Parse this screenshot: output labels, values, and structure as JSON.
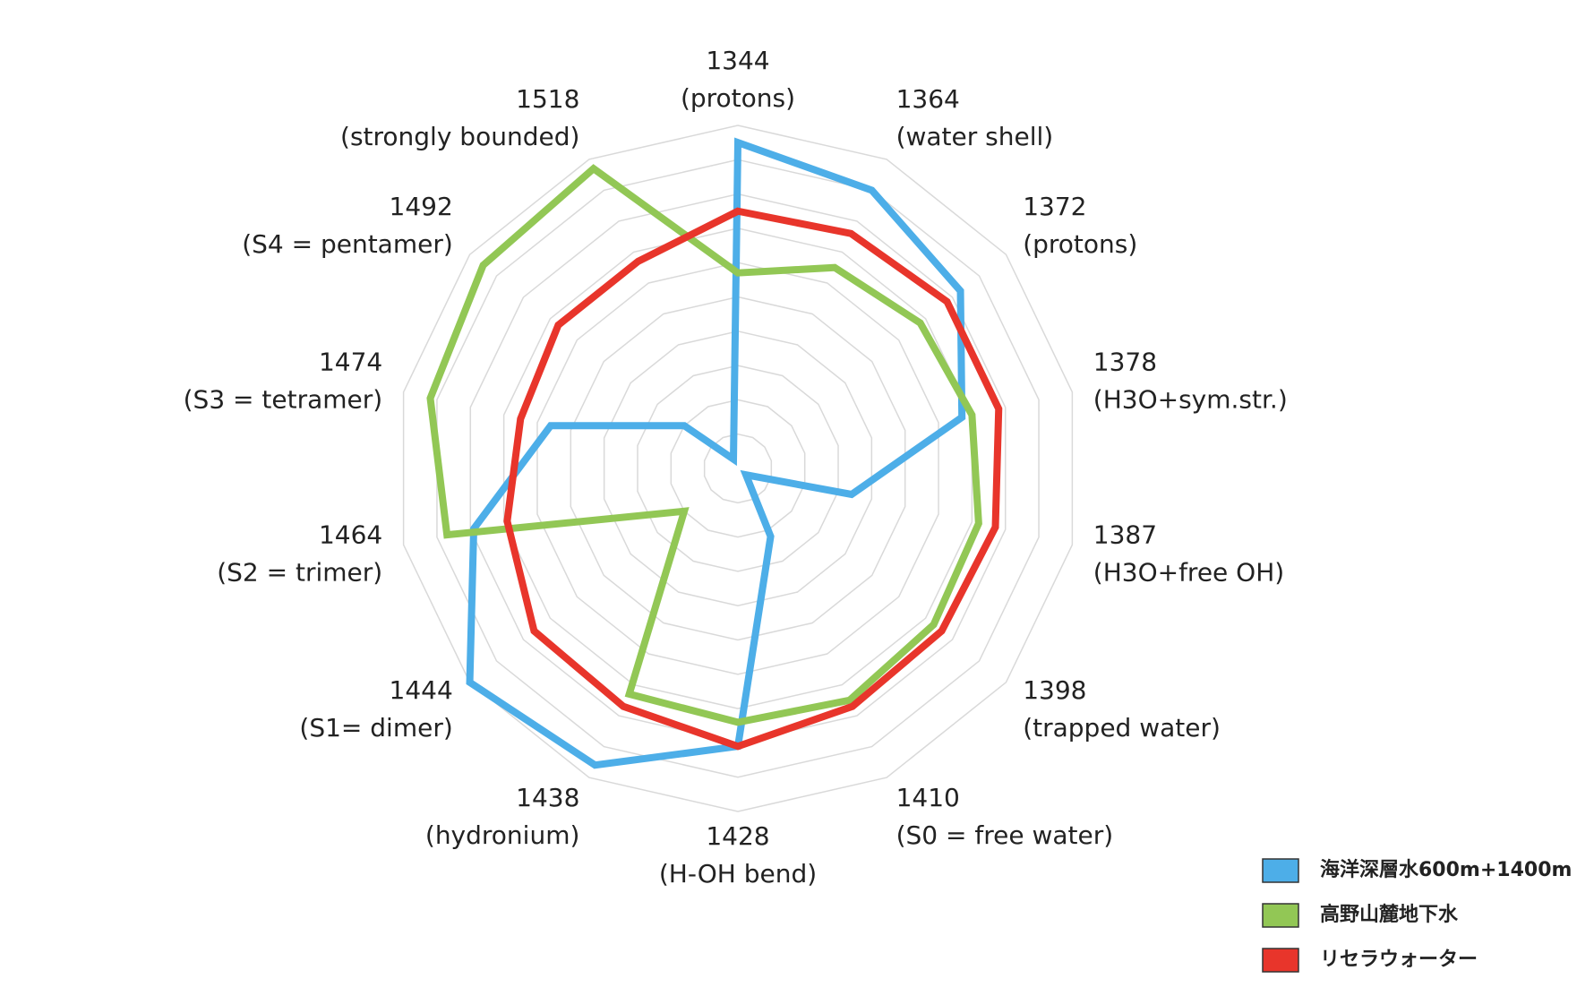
{
  "chart_data": {
    "type": "radar",
    "categories": [
      [
        "1344",
        "(protons)"
      ],
      [
        "1364",
        "(water shell)"
      ],
      [
        "1372",
        "(protons)"
      ],
      [
        "1378",
        "(H3O+sym.str.)"
      ],
      [
        "1387",
        "(H3O+free OH)"
      ],
      [
        "1398",
        "(trapped water)"
      ],
      [
        "1410",
        "(S0 = free water)"
      ],
      [
        "1428",
        "(H-OH bend)"
      ],
      [
        "1438",
        "(hydronium)"
      ],
      [
        "1444",
        "(S1= dimer)"
      ],
      [
        "1464",
        "(S2 = trimer)"
      ],
      [
        "1474",
        "(S3 = tetramer)"
      ],
      [
        "1492",
        "(S4 = pentamer)"
      ],
      [
        "1518",
        "(strongly bounded)"
      ]
    ],
    "series": [
      {
        "name": "海洋深層水600m+1400m",
        "color": "#4daee8",
        "values": [
          9.5,
          9.0,
          8.3,
          6.7,
          3.4,
          0.3,
          2.2,
          8.1,
          9.6,
          10.0,
          7.9,
          5.6,
          2.0,
          0.3
        ]
      },
      {
        "name": "高野山麓地下水",
        "color": "#92c755",
        "values": [
          5.7,
          6.5,
          6.8,
          7.0,
          7.2,
          7.3,
          7.5,
          7.4,
          7.3,
          2.0,
          8.7,
          9.2,
          9.5,
          9.7
        ]
      },
      {
        "name": "リセラウォーター",
        "color": "#e8352b",
        "values": [
          7.5,
          7.6,
          7.8,
          7.8,
          7.7,
          7.6,
          7.7,
          8.1,
          7.7,
          7.6,
          6.9,
          6.5,
          6.7,
          6.7
        ]
      }
    ],
    "rlim": [
      0,
      10
    ],
    "rticks": [
      1,
      2,
      3,
      4,
      5,
      6,
      7,
      8,
      9,
      10
    ],
    "grid": true,
    "legend": "bottom-right"
  }
}
